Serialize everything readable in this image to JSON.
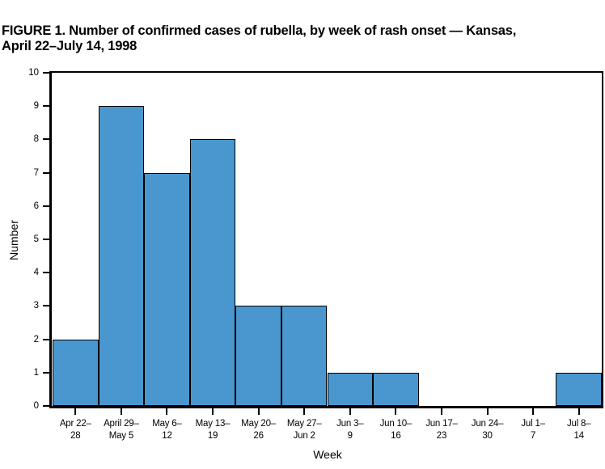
{
  "figure": {
    "title_lines": [
      "FIGURE 1. Number of confirmed cases of rubella, by week of rash onset — Kansas,",
      "April 22–July 14, 1998"
    ]
  },
  "chart_data": {
    "type": "bar",
    "title": "FIGURE 1. Number of confirmed cases of rubella, by week of rash onset — Kansas, April 22–July 14, 1998",
    "xlabel": "Week",
    "ylabel": "Number",
    "categories": [
      "Apr 22–28",
      "April 29–May 5",
      "May 6–12",
      "May 13–19",
      "May 20–26",
      "May 27–Jun 2",
      "Jun 3–9",
      "Jun 10–16",
      "Jun 17–23",
      "Jun 24–30",
      "Jul 1–7",
      "Jul 8–14"
    ],
    "category_labels": [
      [
        "Apr 22–",
        "28"
      ],
      [
        "April 29–",
        "May 5"
      ],
      [
        "May 6–",
        "12"
      ],
      [
        "May 13–",
        "19"
      ],
      [
        "May 20–",
        "26"
      ],
      [
        "May 27–",
        "Jun 2"
      ],
      [
        "Jun 3–",
        "9"
      ],
      [
        "Jun 10–",
        "16"
      ],
      [
        "Jun 17–",
        "23"
      ],
      [
        "Jun 24–",
        "30"
      ],
      [
        "Jul 1–",
        "7"
      ],
      [
        "Jul 8–",
        "14"
      ]
    ],
    "values": [
      2,
      9,
      7,
      8,
      3,
      3,
      1,
      1,
      0,
      0,
      0,
      1
    ],
    "ylim": [
      0,
      10
    ],
    "ytick_step": 1,
    "yticks": [
      "0",
      "1",
      "2",
      "3",
      "4",
      "5",
      "6",
      "7",
      "8",
      "9",
      "10"
    ],
    "grid": false,
    "legend_position": "none",
    "bar_color": "#4997CE",
    "bar_border_color": "#000000",
    "axis_color": "#000000"
  }
}
